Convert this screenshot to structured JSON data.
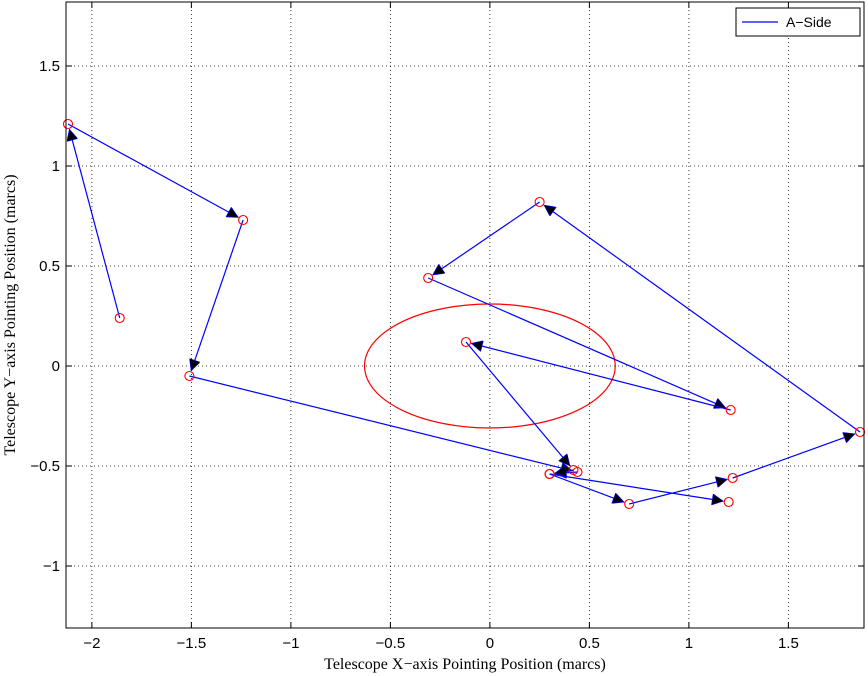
{
  "chart_data": {
    "type": "line",
    "xlabel": "Telescope X−axis Pointing Position (marcs)",
    "ylabel": "Telescope Y−axis Pointing Position (marcs)",
    "xlim": [
      -2.13,
      1.88
    ],
    "ylim": [
      -1.31,
      1.82
    ],
    "xticks": [
      -2,
      -1.5,
      -1,
      -0.5,
      0,
      0.5,
      1,
      1.5
    ],
    "xtick_labels": [
      "−2",
      "−1.5",
      "−1",
      "−0.5",
      "0",
      "0.5",
      "1",
      "1.5"
    ],
    "yticks": [
      -1,
      -0.5,
      0,
      0.5,
      1,
      1.5
    ],
    "ytick_labels": [
      "−1",
      "−0.5",
      "0",
      "0.5",
      "1",
      "1.5"
    ],
    "grid": true,
    "legend_position": "top-right",
    "series": [
      {
        "name": "A−Side",
        "color": "#0000ff",
        "marker": "circle",
        "marker_color": "#ff0000",
        "arrows": true,
        "x": [
          -1.86,
          -2.12,
          -1.24,
          -1.51,
          0.44,
          0.3,
          0.7,
          1.22,
          1.86,
          0.25,
          -0.31,
          1.21,
          -0.12,
          0.42,
          0.3,
          1.2
        ],
        "y": [
          0.24,
          1.21,
          0.73,
          -0.05,
          -0.53,
          -0.54,
          -0.69,
          -0.56,
          -0.33,
          0.82,
          0.44,
          -0.22,
          0.12,
          -0.52,
          -0.54,
          -0.68
        ]
      }
    ],
    "annotations": [
      {
        "type": "ellipse",
        "color": "#ff0000",
        "center": [
          0,
          0
        ],
        "rx": 0.63,
        "ry": 0.31
      }
    ]
  }
}
